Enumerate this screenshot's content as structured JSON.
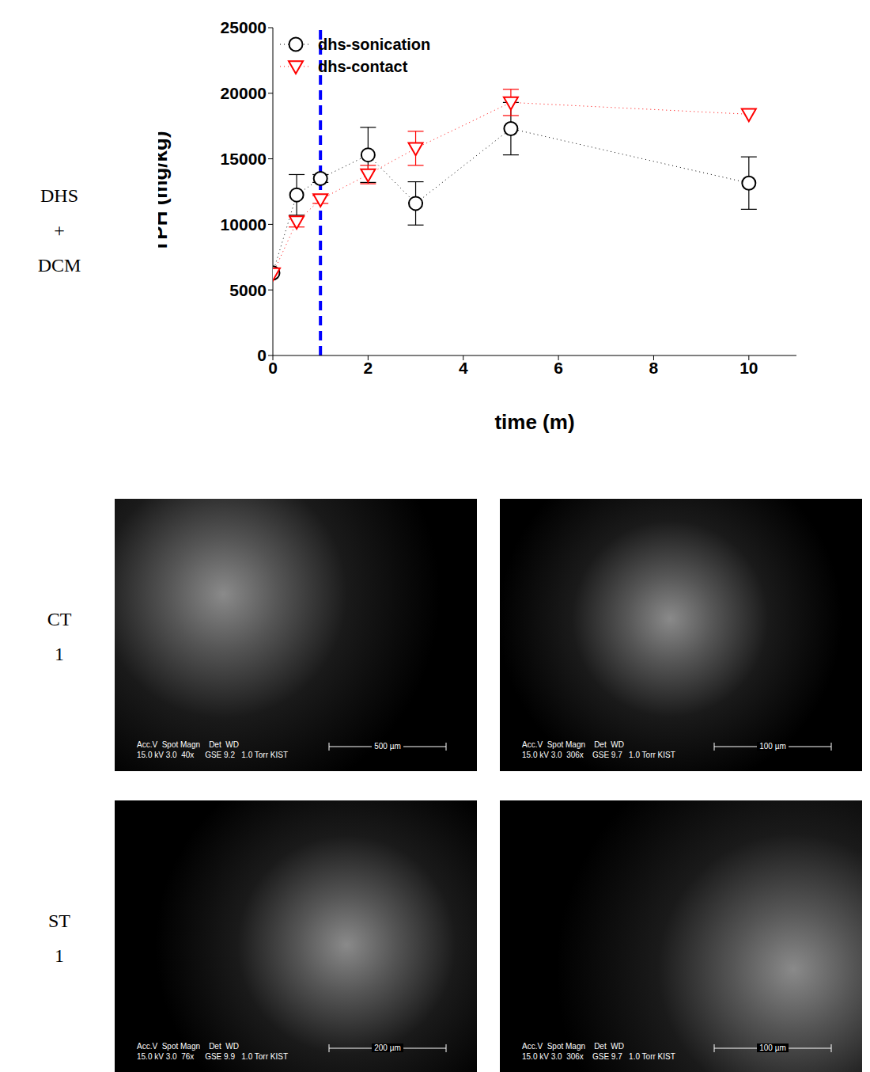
{
  "chart_data": {
    "type": "line",
    "x_label": "time (m)",
    "y_label": "TPH (mg/kg)",
    "x": [
      0,
      0.5,
      1,
      2,
      3,
      5,
      10
    ],
    "xlim": [
      0,
      11
    ],
    "xticks": [
      0,
      2,
      4,
      6,
      8,
      10
    ],
    "ylim": [
      0,
      25000
    ],
    "yticks": [
      0,
      5000,
      10000,
      15000,
      20000,
      25000
    ],
    "grid": false,
    "legend": "upper left",
    "series": [
      {
        "name": "dhs-sonication",
        "color": "#000000",
        "marker": "circle",
        "line_style": "dotted",
        "values": [
          6300,
          12250,
          13500,
          15300,
          11600,
          17300,
          13150
        ],
        "errors": [
          0,
          1550,
          300,
          2100,
          1650,
          2000,
          2000
        ]
      },
      {
        "name": "dhs-contact",
        "color": "#ff0000",
        "marker": "triangle-down",
        "line_style": "dotted",
        "values": [
          6250,
          10200,
          11900,
          13800,
          15800,
          19300,
          18400
        ],
        "errors": [
          0,
          400,
          300,
          700,
          1300,
          1000,
          0
        ]
      }
    ],
    "reference_lines": [
      {
        "x": 1,
        "color": "#0000ff",
        "line_style": "dashed"
      }
    ]
  },
  "side_label": [
    "DHS",
    "+",
    "DCM"
  ],
  "image_rows": [
    {
      "label": [
        "CT",
        "1"
      ],
      "images": [
        {
          "info_header": "Acc.V  Spot Magn    Det  WD",
          "info_values": "15.0 kV 3.0  40x     GSE 9.2   1.0 Torr KIST",
          "scale_bar": "500 µm"
        },
        {
          "info_header": "Acc.V  Spot Magn    Det  WD",
          "info_values": "15.0 kV 3.0  306x    GSE 9.7   1.0 Torr KIST",
          "scale_bar": "100 µm"
        }
      ]
    },
    {
      "label": [
        "ST",
        "1"
      ],
      "images": [
        {
          "info_header": "Acc.V  Spot Magn    Det  WD",
          "info_values": "15.0 kV 3.0  76x     GSE 9.9   1.0 Torr KIST",
          "scale_bar": "200 µm"
        },
        {
          "info_header": "Acc.V  Spot Magn    Det  WD",
          "info_values": "15.0 kV 3.0  306x    GSE 9.7   1.0 Torr KIST",
          "scale_bar": "100 µm"
        }
      ]
    }
  ]
}
